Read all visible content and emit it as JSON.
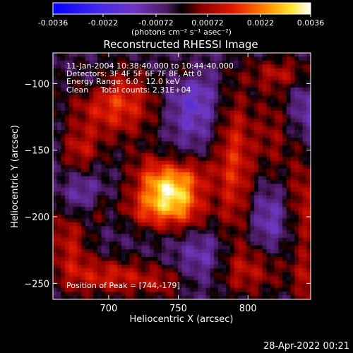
{
  "chart_data": {
    "type": "heatmap",
    "title": "Reconstructed RHESSI Image",
    "xlabel": "Heliocentric X (arcsec)",
    "ylabel": "Heliocentric Y (arcsec)",
    "xlim": [
      660,
      845
    ],
    "ylim": [
      -262,
      -77
    ],
    "x_ticks": [
      700,
      750,
      800
    ],
    "x_tick_labels": [
      "700",
      "750",
      "800"
    ],
    "y_ticks": [
      -100,
      -150,
      -200,
      -250
    ],
    "y_tick_labels": [
      "−100",
      "−150",
      "−200",
      "−250"
    ],
    "annotations": [
      "11-Jan-2004 10:38:40.000 to 10:44:40.000",
      "Detectors: 3F 4F 5F 6F 7F 8F, Att 0",
      "Energy Range: 6.0 - 12.0 keV",
      "Clean     Total counts: 2.31E+04"
    ],
    "peak_label": "Position of Peak = [744,-179]",
    "peak": [
      744,
      -179
    ],
    "colorbar": {
      "range": [
        -0.0036,
        0.0036
      ],
      "tick_labels": [
        "-0.0036",
        "-0.0022",
        "-0.00072",
        "0.00072",
        "0.0022",
        "0.0036"
      ],
      "unit_label": "(photons cm⁻² s⁻¹ asec⁻²)"
    },
    "blobs": [
      {
        "x": 744,
        "y": -182,
        "sx": 20,
        "sy": 12,
        "amp": 0.0034,
        "rot": -45
      },
      {
        "x": 728,
        "y": -196,
        "sx": 14,
        "sy": 10,
        "amp": 0.0016,
        "rot": -20
      },
      {
        "x": 760,
        "y": -168,
        "sx": 12,
        "sy": 10,
        "amp": 0.0012,
        "rot": 0
      },
      {
        "x": 705,
        "y": -115,
        "sx": 22,
        "sy": 18,
        "amp": 0.002,
        "rot": 0
      },
      {
        "x": 680,
        "y": -150,
        "sx": 10,
        "sy": 12,
        "amp": 0.0013,
        "rot": 0
      },
      {
        "x": 702,
        "y": -245,
        "sx": 24,
        "sy": 10,
        "amp": 0.0016,
        "rot": 0
      },
      {
        "x": 672,
        "y": -218,
        "sx": 10,
        "sy": 22,
        "amp": 0.0014,
        "rot": 0
      },
      {
        "x": 790,
        "y": -160,
        "sx": 10,
        "sy": 42,
        "amp": 0.0018,
        "rot": 0
      },
      {
        "x": 818,
        "y": -140,
        "sx": 10,
        "sy": 30,
        "amp": 0.001,
        "rot": 0
      },
      {
        "x": 840,
        "y": -190,
        "sx": 8,
        "sy": 30,
        "amp": 0.0013,
        "rot": 0
      },
      {
        "x": 800,
        "y": -240,
        "sx": 22,
        "sy": 14,
        "amp": 0.0013,
        "rot": 0
      },
      {
        "x": 845,
        "y": -250,
        "sx": 8,
        "sy": 14,
        "amp": 0.0011,
        "rot": 0
      },
      {
        "x": 825,
        "y": -92,
        "sx": 18,
        "sy": 8,
        "amp": 0.0011,
        "rot": 0
      },
      {
        "x": 755,
        "y": -90,
        "sx": 8,
        "sy": 8,
        "amp": 0.0008,
        "rot": 0
      },
      {
        "x": 740,
        "y": -250,
        "sx": 12,
        "sy": 8,
        "amp": 0.0008,
        "rot": 0
      },
      {
        "x": 692,
        "y": -195,
        "sx": 6,
        "sy": 8,
        "amp": 0.0008,
        "rot": 0
      }
    ],
    "dips": [
      {
        "x": 760,
        "y": -115,
        "sx": 14,
        "sy": 20,
        "amp": -0.0012
      },
      {
        "x": 680,
        "y": -185,
        "sx": 10,
        "sy": 12,
        "amp": -0.001
      },
      {
        "x": 770,
        "y": -230,
        "sx": 14,
        "sy": 16,
        "amp": -0.0011
      },
      {
        "x": 815,
        "y": -200,
        "sx": 10,
        "sy": 20,
        "amp": -0.001
      },
      {
        "x": 690,
        "y": -100,
        "sx": 8,
        "sy": 8,
        "amp": -0.0008
      },
      {
        "x": 845,
        "y": -120,
        "sx": 10,
        "sy": 16,
        "amp": -0.0009
      }
    ]
  },
  "footer": {
    "timestamp": "28-Apr-2022 00:21"
  }
}
